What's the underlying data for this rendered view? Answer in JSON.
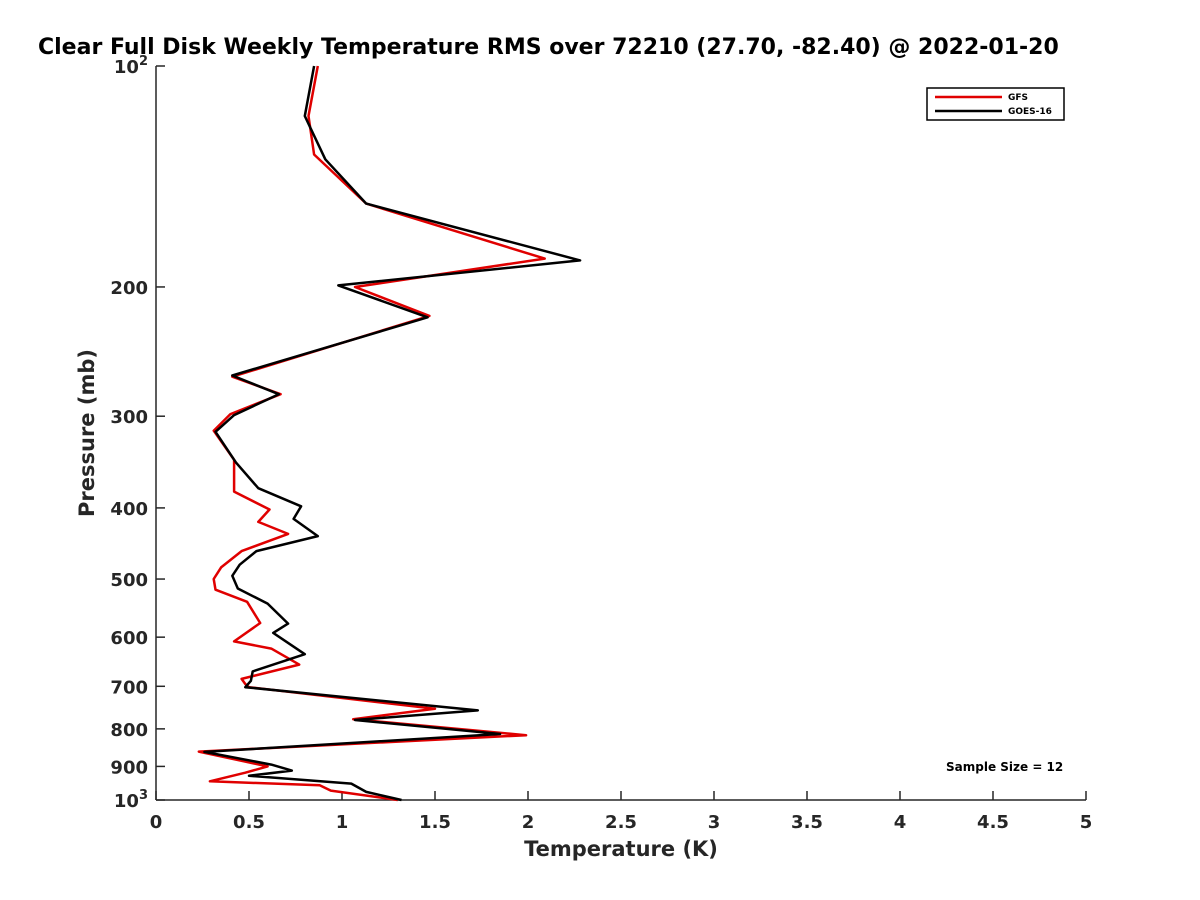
{
  "chart_data": {
    "type": "line",
    "title": "Clear Full Disk Weekly Temperature RMS over 72210 (27.70, -82.40) @ 2022-01-20",
    "xlabel": "Temperature (K)",
    "ylabel": "Pressure (mb)",
    "xlim": [
      0,
      5
    ],
    "ylim": [
      100,
      1000
    ],
    "y_scale": "log",
    "y_reversed": true,
    "grid": false,
    "legend_position": "top-right",
    "xticks": [
      0,
      0.5,
      1,
      1.5,
      2,
      2.5,
      3,
      3.5,
      4,
      4.5,
      5
    ],
    "xtick_labels": [
      "0",
      "0.5",
      "1",
      "1.5",
      "2",
      "2.5",
      "3",
      "3.5",
      "4",
      "4.5",
      "5"
    ],
    "yticks": [
      {
        "value": 100,
        "base": "10",
        "exp": "2"
      },
      {
        "value": 200,
        "label": "200"
      },
      {
        "value": 300,
        "label": "300"
      },
      {
        "value": 400,
        "label": "400"
      },
      {
        "value": 500,
        "label": "500"
      },
      {
        "value": 600,
        "label": "600"
      },
      {
        "value": 700,
        "label": "700"
      },
      {
        "value": 800,
        "label": "800"
      },
      {
        "value": 900,
        "label": "900"
      },
      {
        "value": 1000,
        "base": "10",
        "exp": "3"
      }
    ],
    "annotation": "Sample Size = 12",
    "series": [
      {
        "name": "GFS",
        "color": "#e00000",
        "points": [
          [
            0.87,
            100
          ],
          [
            0.82,
            117
          ],
          [
            0.85,
            132
          ],
          [
            1.13,
            154
          ],
          [
            2.09,
            183
          ],
          [
            1.07,
            200
          ],
          [
            1.47,
            219
          ],
          [
            0.41,
            265
          ],
          [
            0.67,
            280
          ],
          [
            0.4,
            298
          ],
          [
            0.31,
            314
          ],
          [
            0.42,
            344
          ],
          [
            0.42,
            380
          ],
          [
            0.61,
            402
          ],
          [
            0.55,
            418
          ],
          [
            0.71,
            434
          ],
          [
            0.46,
            458
          ],
          [
            0.35,
            482
          ],
          [
            0.31,
            500
          ],
          [
            0.32,
            517
          ],
          [
            0.49,
            537
          ],
          [
            0.56,
            574
          ],
          [
            0.42,
            608
          ],
          [
            0.62,
            622
          ],
          [
            0.77,
            654
          ],
          [
            0.46,
            684
          ],
          [
            0.48,
            695
          ],
          [
            0.5,
            702
          ],
          [
            1.5,
            751
          ],
          [
            1.06,
            776
          ],
          [
            1.99,
            816
          ],
          [
            0.23,
            859
          ],
          [
            0.6,
            900
          ],
          [
            0.48,
            918
          ],
          [
            0.29,
            943
          ],
          [
            0.88,
            955
          ],
          [
            0.94,
            971
          ],
          [
            1.3,
            1000
          ]
        ]
      },
      {
        "name": "GOES-16",
        "color": "#000000",
        "points": [
          [
            0.85,
            100
          ],
          [
            0.8,
            117
          ],
          [
            0.91,
            134
          ],
          [
            1.13,
            154
          ],
          [
            2.28,
            184
          ],
          [
            0.98,
            199
          ],
          [
            1.46,
            220
          ],
          [
            0.41,
            264
          ],
          [
            0.66,
            280
          ],
          [
            0.42,
            299
          ],
          [
            0.32,
            315
          ],
          [
            0.43,
            347
          ],
          [
            0.55,
            376
          ],
          [
            0.78,
            398
          ],
          [
            0.74,
            414
          ],
          [
            0.87,
            437
          ],
          [
            0.54,
            458
          ],
          [
            0.45,
            478
          ],
          [
            0.41,
            495
          ],
          [
            0.44,
            515
          ],
          [
            0.6,
            540
          ],
          [
            0.71,
            575
          ],
          [
            0.63,
            592
          ],
          [
            0.8,
            633
          ],
          [
            0.52,
            668
          ],
          [
            0.51,
            688
          ],
          [
            0.48,
            702
          ],
          [
            1.73,
            755
          ],
          [
            1.07,
            778
          ],
          [
            1.85,
            813
          ],
          [
            0.26,
            860
          ],
          [
            0.62,
            895
          ],
          [
            0.73,
            912
          ],
          [
            0.5,
            927
          ],
          [
            1.05,
            950
          ],
          [
            1.13,
            975
          ],
          [
            1.32,
            1000
          ]
        ]
      }
    ]
  }
}
